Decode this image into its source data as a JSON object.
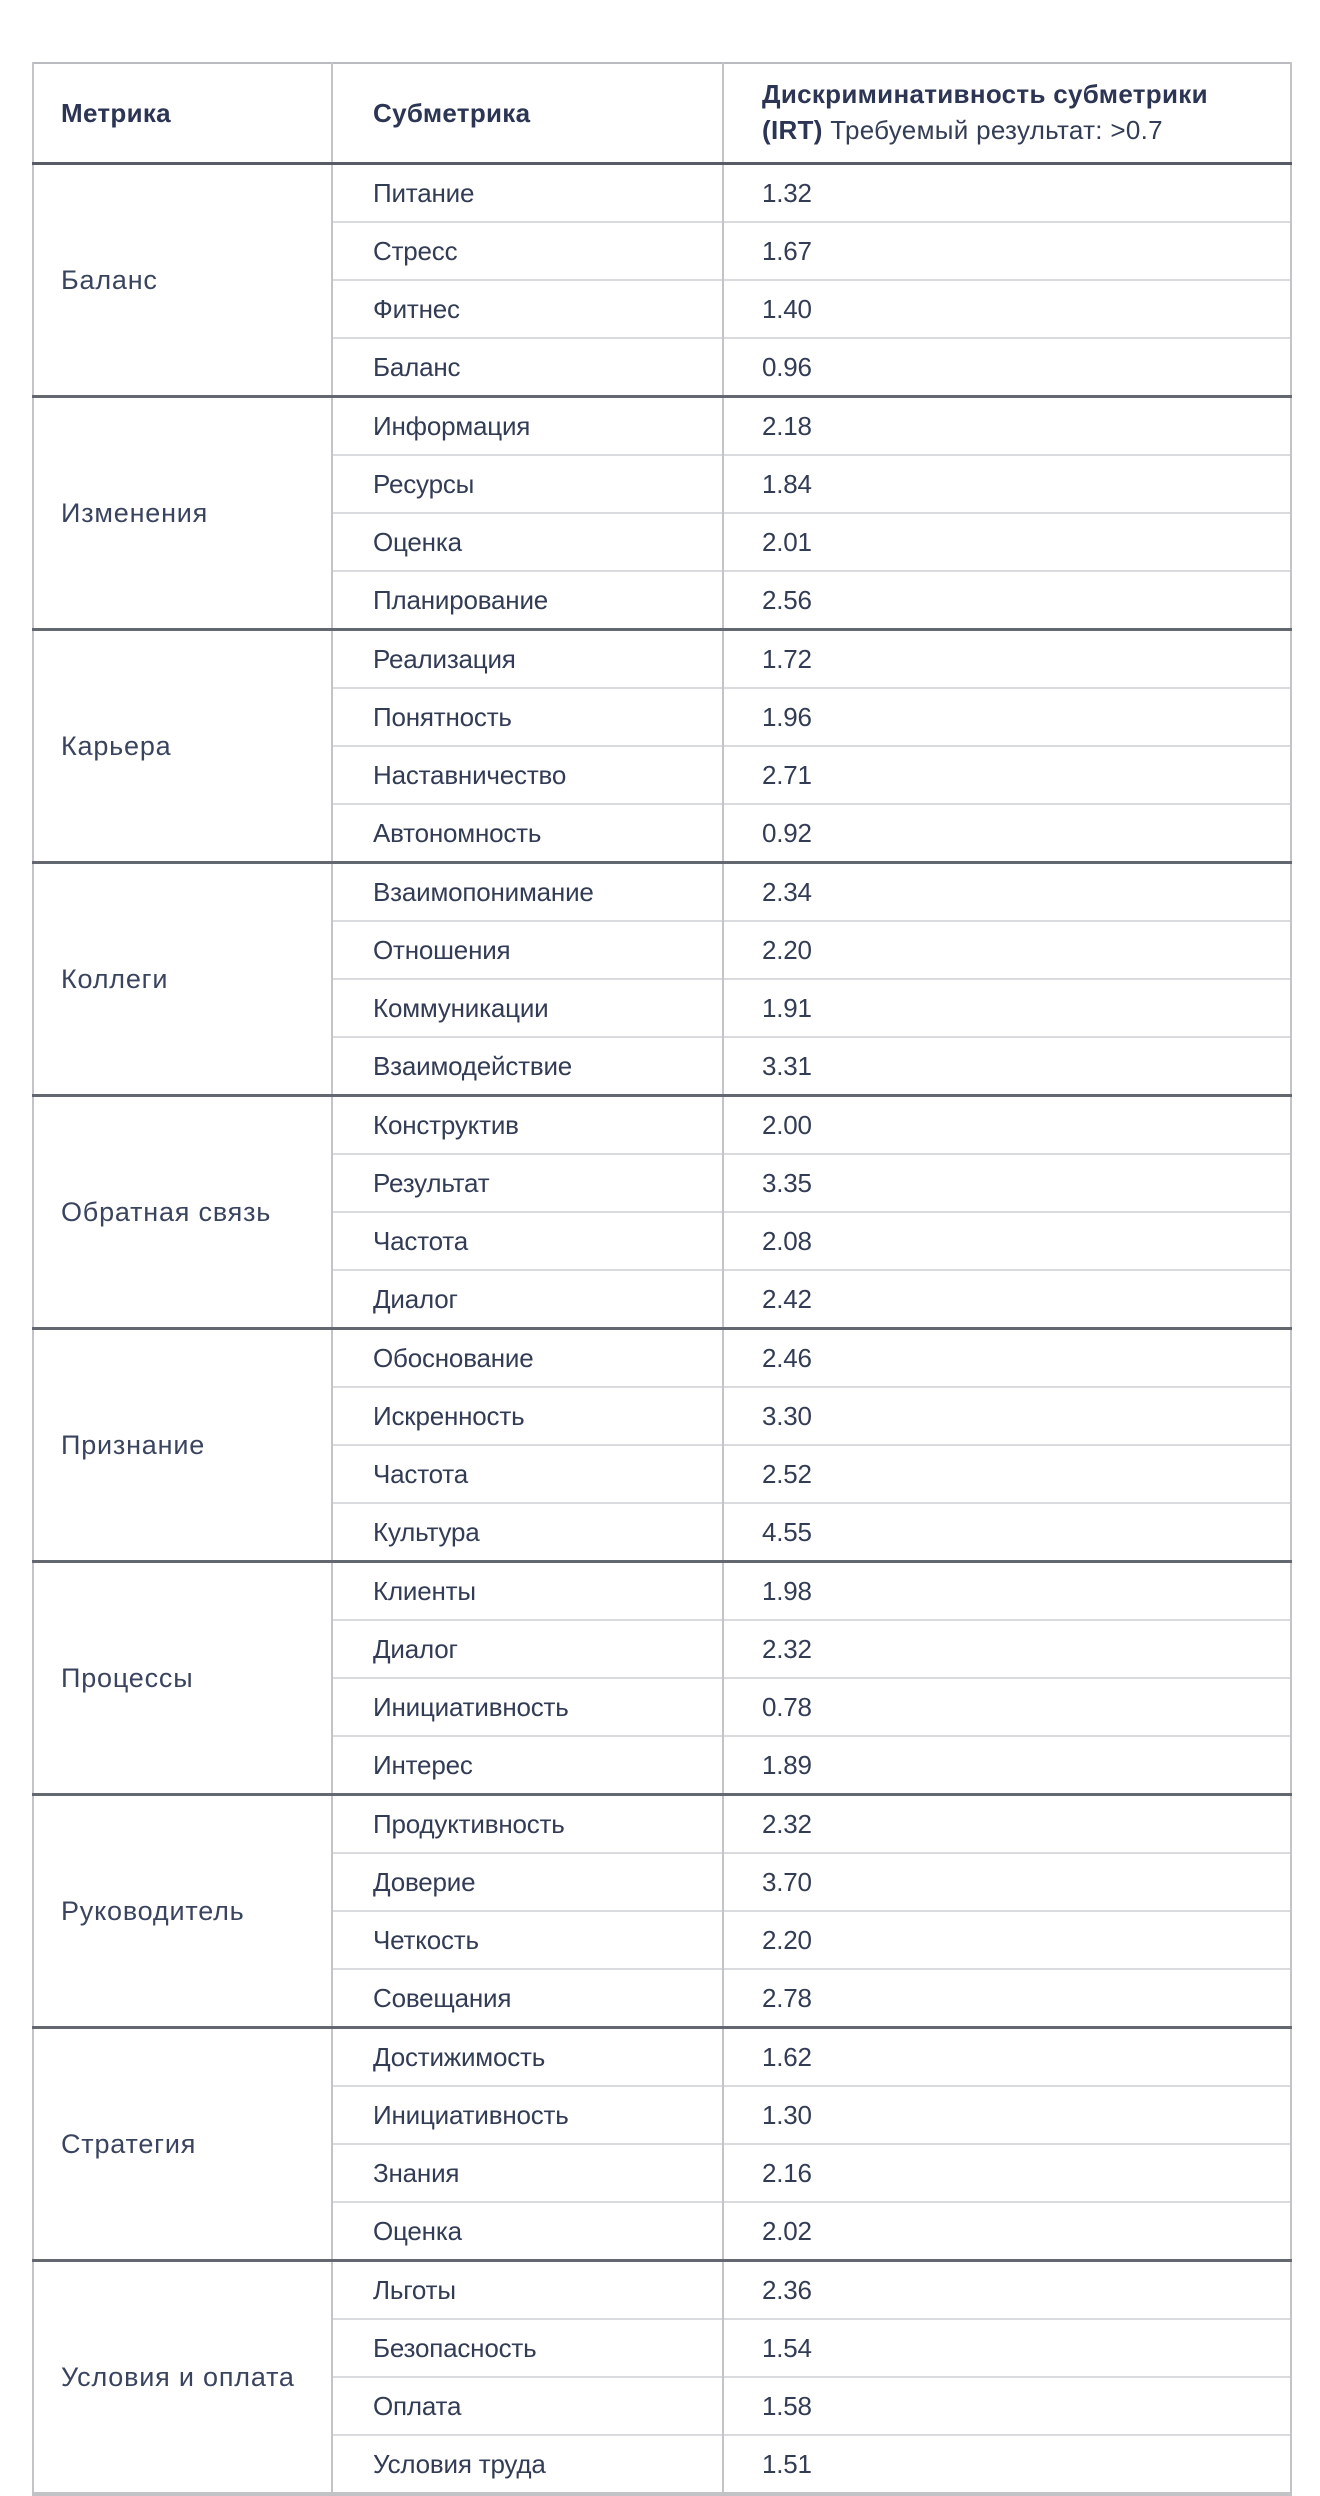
{
  "table": {
    "columns": {
      "metric": "Метрика",
      "submetric": "Субметрика",
      "disc_title": "Дискриминативность субметрики",
      "disc_bold2": "(IRT)",
      "disc_rest": "Требуемый результат: >0.7"
    },
    "groups": [
      {
        "metric": "Баланс",
        "rows": [
          {
            "label": "Питание",
            "value": "1.32"
          },
          {
            "label": "Стресс",
            "value": "1.67"
          },
          {
            "label": "Фитнес",
            "value": "1.40"
          },
          {
            "label": "Баланс",
            "value": "0.96"
          }
        ]
      },
      {
        "metric": "Изменения",
        "rows": [
          {
            "label": "Информация",
            "value": "2.18"
          },
          {
            "label": "Ресурсы",
            "value": "1.84"
          },
          {
            "label": "Оценка",
            "value": "2.01"
          },
          {
            "label": "Планирование",
            "value": "2.56"
          }
        ]
      },
      {
        "metric": "Карьера",
        "rows": [
          {
            "label": "Реализация",
            "value": "1.72"
          },
          {
            "label": "Понятность",
            "value": "1.96"
          },
          {
            "label": "Наставничество",
            "value": "2.71"
          },
          {
            "label": "Автономность",
            "value": "0.92"
          }
        ]
      },
      {
        "metric": "Коллеги",
        "rows": [
          {
            "label": "Взаимопонимание",
            "value": "2.34"
          },
          {
            "label": "Отношения",
            "value": "2.20"
          },
          {
            "label": "Коммуникации",
            "value": "1.91"
          },
          {
            "label": "Взаимодействие",
            "value": "3.31"
          }
        ]
      },
      {
        "metric": "Обратная связь",
        "rows": [
          {
            "label": "Конструктив",
            "value": "2.00"
          },
          {
            "label": "Результат",
            "value": "3.35"
          },
          {
            "label": "Частота",
            "value": "2.08"
          },
          {
            "label": "Диалог",
            "value": "2.42"
          }
        ]
      },
      {
        "metric": "Признание",
        "rows": [
          {
            "label": "Обоснование",
            "value": "2.46"
          },
          {
            "label": "Искренность",
            "value": "3.30"
          },
          {
            "label": "Частота",
            "value": "2.52"
          },
          {
            "label": "Культура",
            "value": "4.55"
          }
        ]
      },
      {
        "metric": "Процессы",
        "rows": [
          {
            "label": "Клиенты",
            "value": "1.98"
          },
          {
            "label": "Диалог",
            "value": "2.32"
          },
          {
            "label": "Инициативность",
            "value": "0.78"
          },
          {
            "label": "Интерес",
            "value": "1.89"
          }
        ]
      },
      {
        "metric": "Руководитель",
        "rows": [
          {
            "label": "Продуктивность",
            "value": "2.32"
          },
          {
            "label": "Доверие",
            "value": "3.70"
          },
          {
            "label": "Четкость",
            "value": "2.20"
          },
          {
            "label": "Совещания",
            "value": "2.78"
          }
        ]
      },
      {
        "metric": "Стратегия",
        "rows": [
          {
            "label": "Достижимость",
            "value": "1.62"
          },
          {
            "label": "Инициативность",
            "value": "1.30"
          },
          {
            "label": "Знания",
            "value": "2.16"
          },
          {
            "label": "Оценка",
            "value": "2.02"
          }
        ]
      },
      {
        "metric": "Условия и оплата",
        "rows": [
          {
            "label": "Льготы",
            "value": "2.36"
          },
          {
            "label": "Безопасность",
            "value": "1.54"
          },
          {
            "label": "Оплата",
            "value": "1.58"
          },
          {
            "label": "Условия труда",
            "value": "1.51"
          }
        ]
      }
    ],
    "colors": {
      "text_body": "#333c55",
      "text_metric": "#3a445f",
      "text_header": "#2c3654",
      "border_light": "#d9dbdf",
      "border_dark": "#63676f",
      "border_outer": "#b9bbc1"
    }
  }
}
